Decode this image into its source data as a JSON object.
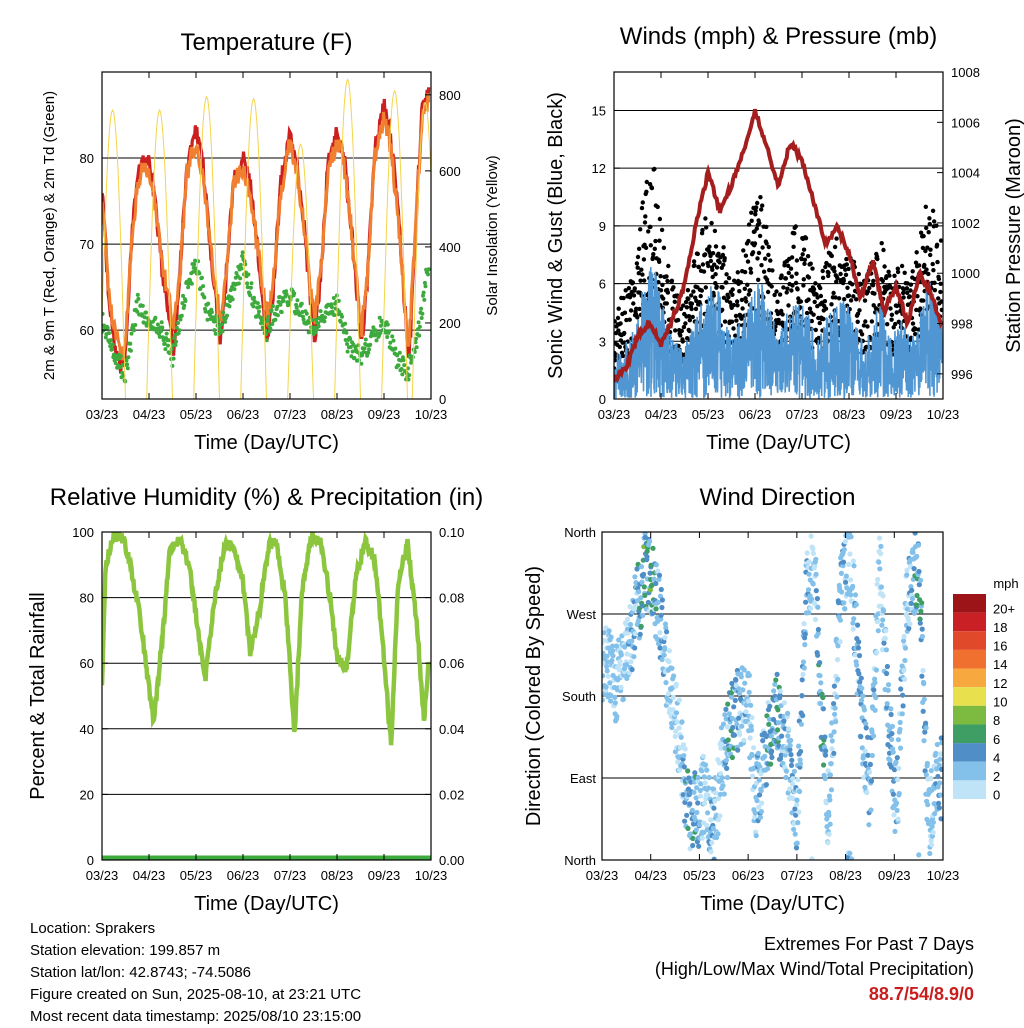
{
  "chart_data": [
    {
      "type": "line",
      "title": "Temperature (F)",
      "xlabel": "Time (Day/UTC)",
      "ylabel": "2m & 9m T (Red, Orange) & 2m Td (Green)",
      "ylabel_right": "Solar Insolation (Yellow)",
      "x_ticks": [
        "03/23",
        "04/23",
        "05/23",
        "06/23",
        "07/23",
        "08/23",
        "09/23",
        "10/23"
      ],
      "ylim": [
        52,
        90
      ],
      "y_ticks": [
        60,
        70,
        80
      ],
      "ylim_right": [
        0,
        860
      ],
      "y_ticks_right": [
        0,
        200,
        400,
        600,
        800
      ],
      "grid": true,
      "series": [
        {
          "key": "t2m",
          "color": "#cc1f1f",
          "x": [
            0,
            0.3,
            0.6,
            0.9,
            1.05,
            1.3,
            1.6,
            2.0,
            2.3,
            2.6,
            2.9,
            3.05,
            3.3,
            3.6,
            4.0,
            4.3,
            4.6,
            4.9,
            5.05,
            5.3,
            5.6,
            6.0,
            6.3,
            6.6,
            6.9,
            7.05,
            7.3,
            7.6,
            8.0,
            8.3,
            8.6,
            8.9,
            9.05,
            9.3,
            9.6,
            10.0,
            10.3,
            10.6,
            10.9,
            11.05,
            11.3,
            11.6,
            12.0,
            12.3,
            12.6,
            12.9,
            13.05,
            13.3,
            13.6,
            13.9
          ],
          "y": [
            77,
            63,
            57,
            55,
            60,
            73,
            79,
            80,
            74,
            66,
            61,
            58,
            66,
            79,
            83,
            79,
            70,
            62,
            59,
            67,
            78,
            80,
            77,
            70,
            62,
            59,
            65,
            77,
            83,
            79,
            72,
            63,
            59,
            66,
            79,
            83,
            80,
            72,
            63,
            58,
            66,
            81,
            86,
            82,
            74,
            62,
            56,
            69,
            85,
            88
          ]
        },
        {
          "key": "t9m",
          "color": "#f08030",
          "x": [
            0,
            0.3,
            0.6,
            0.9,
            1.05,
            1.3,
            1.6,
            2.0,
            2.3,
            2.6,
            2.9,
            3.05,
            3.3,
            3.6,
            4.0,
            4.3,
            4.6,
            4.9,
            5.05,
            5.3,
            5.6,
            6.0,
            6.3,
            6.6,
            6.9,
            7.05,
            7.3,
            7.6,
            8.0,
            8.3,
            8.6,
            8.9,
            9.05,
            9.3,
            9.6,
            10.0,
            10.3,
            10.6,
            10.9,
            11.05,
            11.3,
            11.6,
            12.0,
            12.3,
            12.6,
            12.9,
            13.05,
            13.3,
            13.6,
            13.9
          ],
          "y": [
            76,
            64,
            59,
            57,
            61,
            72,
            78,
            79,
            74,
            67,
            63,
            60,
            66,
            78,
            82,
            78,
            70,
            64,
            61,
            67,
            77,
            79,
            76,
            70,
            64,
            61,
            66,
            76,
            82,
            78,
            72,
            64,
            61,
            67,
            78,
            82,
            79,
            72,
            64,
            60,
            67,
            80,
            85,
            81,
            73,
            63,
            58,
            70,
            84,
            87
          ]
        },
        {
          "key": "td",
          "color": "#3daa3d",
          "x": [
            0,
            0.5,
            1.0,
            1.5,
            2.0,
            2.5,
            3.0,
            3.5,
            4.0,
            4.5,
            5.0,
            5.5,
            6.0,
            6.5,
            7.0,
            7.5,
            8.0,
            8.5,
            9.0,
            9.5,
            10.0,
            10.5,
            11.0,
            11.5,
            12.0,
            12.5,
            13.0,
            13.5,
            13.9
          ],
          "y": [
            61,
            57,
            55,
            63,
            61,
            60,
            57,
            64,
            68,
            62,
            60,
            64,
            68,
            63,
            60,
            63,
            64,
            62,
            60,
            62,
            63,
            58,
            57,
            59,
            61,
            57,
            55,
            60,
            68
          ]
        },
        {
          "key": "solar",
          "color": "#f5d44a",
          "axis": "right",
          "peaks": [
            {
              "x": 0.45,
              "v": 760
            },
            {
              "x": 2.45,
              "v": 760
            },
            {
              "x": 4.45,
              "v": 795
            },
            {
              "x": 6.45,
              "v": 790
            },
            {
              "x": 8.45,
              "v": 670
            },
            {
              "x": 10.45,
              "v": 840
            },
            {
              "x": 12.45,
              "v": 810
            },
            {
              "x": 13.75,
              "v": 780
            }
          ]
        }
      ]
    },
    {
      "type": "scatter",
      "title": "Winds (mph) & Pressure (mb)",
      "xlabel": "Time (Day/UTC)",
      "ylabel": "Sonic Wind & Gust (Blue, Black)",
      "ylabel_right": "Station Pressure (Maroon)",
      "x_ticks": [
        "03/23",
        "04/23",
        "05/23",
        "06/23",
        "07/23",
        "08/23",
        "09/23",
        "10/23"
      ],
      "ylim": [
        0,
        17
      ],
      "y_ticks": [
        0,
        3,
        6,
        9,
        12,
        15
      ],
      "ylim_right": [
        995,
        1008
      ],
      "y_ticks_right": [
        996,
        998,
        1000,
        1002,
        1004,
        1006,
        1008
      ],
      "grid": true,
      "series": [
        {
          "key": "gust",
          "color": "#000000",
          "x": [
            0,
            0.5,
            1.0,
            1.3,
            1.6,
            2.0,
            2.5,
            3.0,
            3.4,
            3.8,
            4.2,
            4.6,
            5.0,
            5.4,
            5.8,
            6.2,
            6.6,
            7.0,
            7.4,
            7.8,
            8.2,
            8.6,
            9.0,
            9.4,
            9.8,
            10.2,
            10.6,
            11.0,
            11.4,
            11.8,
            12.2,
            12.6,
            13.0,
            13.4,
            13.9
          ],
          "y": [
            3.5,
            5,
            6,
            10,
            12,
            8,
            5,
            4,
            6,
            8,
            8,
            7,
            5,
            6,
            8,
            9,
            7,
            5,
            7,
            8,
            7,
            5,
            6,
            7,
            7,
            6,
            5,
            6,
            7,
            5,
            6,
            5,
            7,
            9,
            7
          ]
        },
        {
          "key": "wind",
          "color": "#4f96d2",
          "x": [
            0,
            0.5,
            1.0,
            1.3,
            1.6,
            2.0,
            2.5,
            3.0,
            3.4,
            3.8,
            4.2,
            4.6,
            5.0,
            5.4,
            5.8,
            6.2,
            6.6,
            7.0,
            7.4,
            7.8,
            8.2,
            8.6,
            9.0,
            9.4,
            9.8,
            10.2,
            10.6,
            11.0,
            11.4,
            11.8,
            12.2,
            12.6,
            13.0,
            13.4,
            13.9
          ],
          "y": [
            2,
            3,
            4,
            6,
            7.5,
            5,
            3,
            2.5,
            4,
            5,
            6,
            5,
            3,
            4,
            5,
            6,
            5,
            3,
            4.5,
            5,
            4.5,
            3,
            4,
            4.5,
            5,
            4,
            3,
            4,
            5,
            3,
            4,
            3,
            4,
            6,
            4
          ]
        },
        {
          "key": "pressure",
          "color": "#a41e1e",
          "axis": "right",
          "x": [
            0,
            0.5,
            1.0,
            1.5,
            2.0,
            2.5,
            3.0,
            3.5,
            4.0,
            4.5,
            5.0,
            5.5,
            6.0,
            6.5,
            7.0,
            7.5,
            8.0,
            8.5,
            9.0,
            9.5,
            10.0,
            10.5,
            11.0,
            11.5,
            12.0,
            12.5,
            13.0,
            13.5,
            13.9
          ],
          "y": [
            995.8,
            996.2,
            997.5,
            998,
            997.2,
            998.2,
            999.5,
            1002,
            1004,
            1002.5,
            1003.5,
            1004.8,
            1006.5,
            1005,
            1003.5,
            1005.2,
            1004.5,
            1002.8,
            1001.2,
            1001.8,
            1000.8,
            999,
            1000.5,
            998.5,
            999.5,
            998,
            1000,
            999.2,
            998
          ]
        }
      ]
    },
    {
      "type": "line",
      "title": "Relative Humidity (%) & Precipitation (in)",
      "xlabel": "Time (Day/UTC)",
      "ylabel": "Percent & Total Rainfall",
      "x_ticks": [
        "03/23",
        "04/23",
        "05/23",
        "06/23",
        "07/23",
        "08/23",
        "09/23",
        "10/23"
      ],
      "ylim": [
        0,
        100
      ],
      "y_ticks": [
        0,
        20,
        40,
        60,
        80,
        100
      ],
      "ylim_right": [
        0,
        0.1
      ],
      "y_ticks_right": [
        "0.00",
        "0.02",
        "0.04",
        "0.06",
        "0.08",
        "0.10"
      ],
      "grid": true,
      "series": [
        {
          "key": "rh",
          "color": "#8cc63f",
          "x": [
            0,
            0.15,
            0.5,
            0.9,
            1.2,
            1.6,
            1.9,
            2.2,
            2.6,
            2.9,
            3.3,
            3.7,
            4.0,
            4.4,
            4.8,
            5.2,
            5.6,
            6.0,
            6.3,
            6.7,
            7.1,
            7.4,
            7.8,
            8.2,
            8.5,
            8.9,
            9.3,
            9.7,
            10.0,
            10.4,
            10.8,
            11.2,
            11.6,
            11.9,
            12.3,
            12.6,
            13.0,
            13.4,
            13.7,
            13.9
          ],
          "y": [
            55,
            90,
            99,
            98,
            90,
            75,
            58,
            42,
            70,
            95,
            98,
            90,
            75,
            55,
            80,
            96,
            95,
            85,
            63,
            76,
            96,
            97,
            80,
            38,
            82,
            99,
            98,
            80,
            62,
            58,
            86,
            97,
            92,
            70,
            35,
            85,
            97,
            72,
            42,
            60
          ]
        },
        {
          "key": "precip",
          "color": "#3daa3d",
          "axis": "right",
          "x": [
            0,
            13.9
          ],
          "y": [
            0,
            0
          ]
        }
      ]
    },
    {
      "type": "scatter",
      "title": "Wind Direction",
      "xlabel": "Time (Day/UTC)",
      "ylabel": "Direction (Colored By Speed)",
      "x_ticks": [
        "03/23",
        "04/23",
        "05/23",
        "06/23",
        "07/23",
        "08/23",
        "09/23",
        "10/23"
      ],
      "y_tick_labels": [
        "North",
        "East",
        "South",
        "West",
        "North"
      ],
      "ylim": [
        0,
        360
      ],
      "grid": true,
      "colorbar": {
        "label": "mph",
        "levels": [
          "0",
          "2",
          "4",
          "6",
          "8",
          "10",
          "12",
          "14",
          "16",
          "18",
          "20+"
        ],
        "colors": [
          "#bfe3f7",
          "#84c1ea",
          "#4f8ec6",
          "#3f9e64",
          "#7cbb3f",
          "#e8e04c",
          "#f7a940",
          "#f07030",
          "#e04a2a",
          "#c82024",
          "#9c1418"
        ]
      },
      "series": [
        {
          "key": "dir",
          "name": "",
          "x": [
            0.3,
            0.6,
            1.0,
            1.8,
            2.1,
            2.3,
            2.7,
            3.2,
            3.5,
            3.9,
            4.2,
            4.6,
            4.9,
            5.3,
            5.6,
            6.0,
            6.3,
            6.8,
            7.2,
            7.6,
            8.0,
            8.4,
            8.7,
            9.0,
            9.3,
            9.8,
            10.2,
            10.6,
            11.0,
            11.4,
            11.8,
            12.1,
            12.5,
            13.0,
            13.4,
            13.8
          ],
          "y": [
            210,
            195,
            225,
            320,
            300,
            280,
            200,
            130,
            60,
            50,
            75,
            40,
            100,
            155,
            165,
            180,
            60,
            130,
            160,
            120,
            45,
            300,
            330,
            160,
            50,
            290,
            340,
            175,
            70,
            330,
            140,
            55,
            280,
            330,
            40,
            90
          ],
          "s": [
            3,
            3,
            3,
            7,
            6,
            5,
            3,
            2,
            6,
            5,
            3,
            4,
            2,
            7,
            4,
            3,
            3,
            5,
            6,
            3,
            5,
            4,
            3,
            6,
            3,
            4,
            3,
            5,
            4,
            2,
            5,
            4,
            3,
            6,
            3,
            4
          ]
        }
      ]
    }
  ],
  "info": {
    "location": "Location: Sprakers",
    "elevation": "Station elevation: 199.857 m",
    "latlon": "Station lat/lon: 42.8743; -74.5086",
    "created": "Figure created on Sun, 2025-08-10, at 23:21 UTC",
    "recent": "Most recent data timestamp: 2025/08/10 23:15:00"
  },
  "extremes": {
    "title": "Extremes For Past 7 Days",
    "subtitle": "(High/Low/Max Wind/Total Precipitation)",
    "values": "88.7/54/8.9/0"
  }
}
